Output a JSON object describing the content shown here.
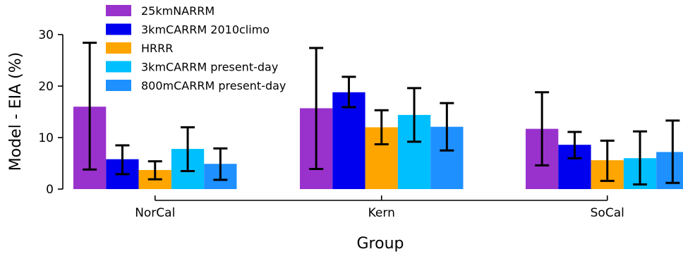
{
  "chart_data": {
    "type": "bar",
    "title": "",
    "xlabel": "Group",
    "ylabel": "Model - EIA (%)",
    "ylim": [
      0,
      30
    ],
    "yticks": [
      0,
      10,
      20,
      30
    ],
    "grid": false,
    "legend": "top-left",
    "categories": [
      "NorCal",
      "Kern",
      "SoCal"
    ],
    "series": [
      {
        "name": "25kmNARRM",
        "color": "#9932CC",
        "values": [
          16.0,
          15.7,
          11.7
        ],
        "err_low": [
          3.8,
          3.9,
          4.6
        ],
        "err_high": [
          28.4,
          27.4,
          18.8
        ]
      },
      {
        "name": "3kmCARRM 2010climo",
        "color": "#0000EE",
        "values": [
          5.8,
          18.8,
          8.6
        ],
        "err_low": [
          2.9,
          15.9,
          6.0
        ],
        "err_high": [
          8.5,
          21.8,
          11.1
        ]
      },
      {
        "name": "HRRR",
        "color": "#FFA500",
        "values": [
          3.7,
          12.0,
          5.6
        ],
        "err_low": [
          1.9,
          8.7,
          1.6
        ],
        "err_high": [
          5.4,
          15.3,
          9.4
        ]
      },
      {
        "name": "3kmCARRM present-day",
        "color": "#00BFFF",
        "values": [
          7.8,
          14.4,
          6.0
        ],
        "err_low": [
          3.5,
          9.2,
          0.9
        ],
        "err_high": [
          12.0,
          19.6,
          11.2
        ]
      },
      {
        "name": "800mCARRM present-day",
        "color": "#1E90FF",
        "values": [
          4.9,
          12.1,
          7.2
        ],
        "err_low": [
          1.8,
          7.5,
          1.2
        ],
        "err_high": [
          7.9,
          16.7,
          13.3
        ]
      }
    ]
  }
}
